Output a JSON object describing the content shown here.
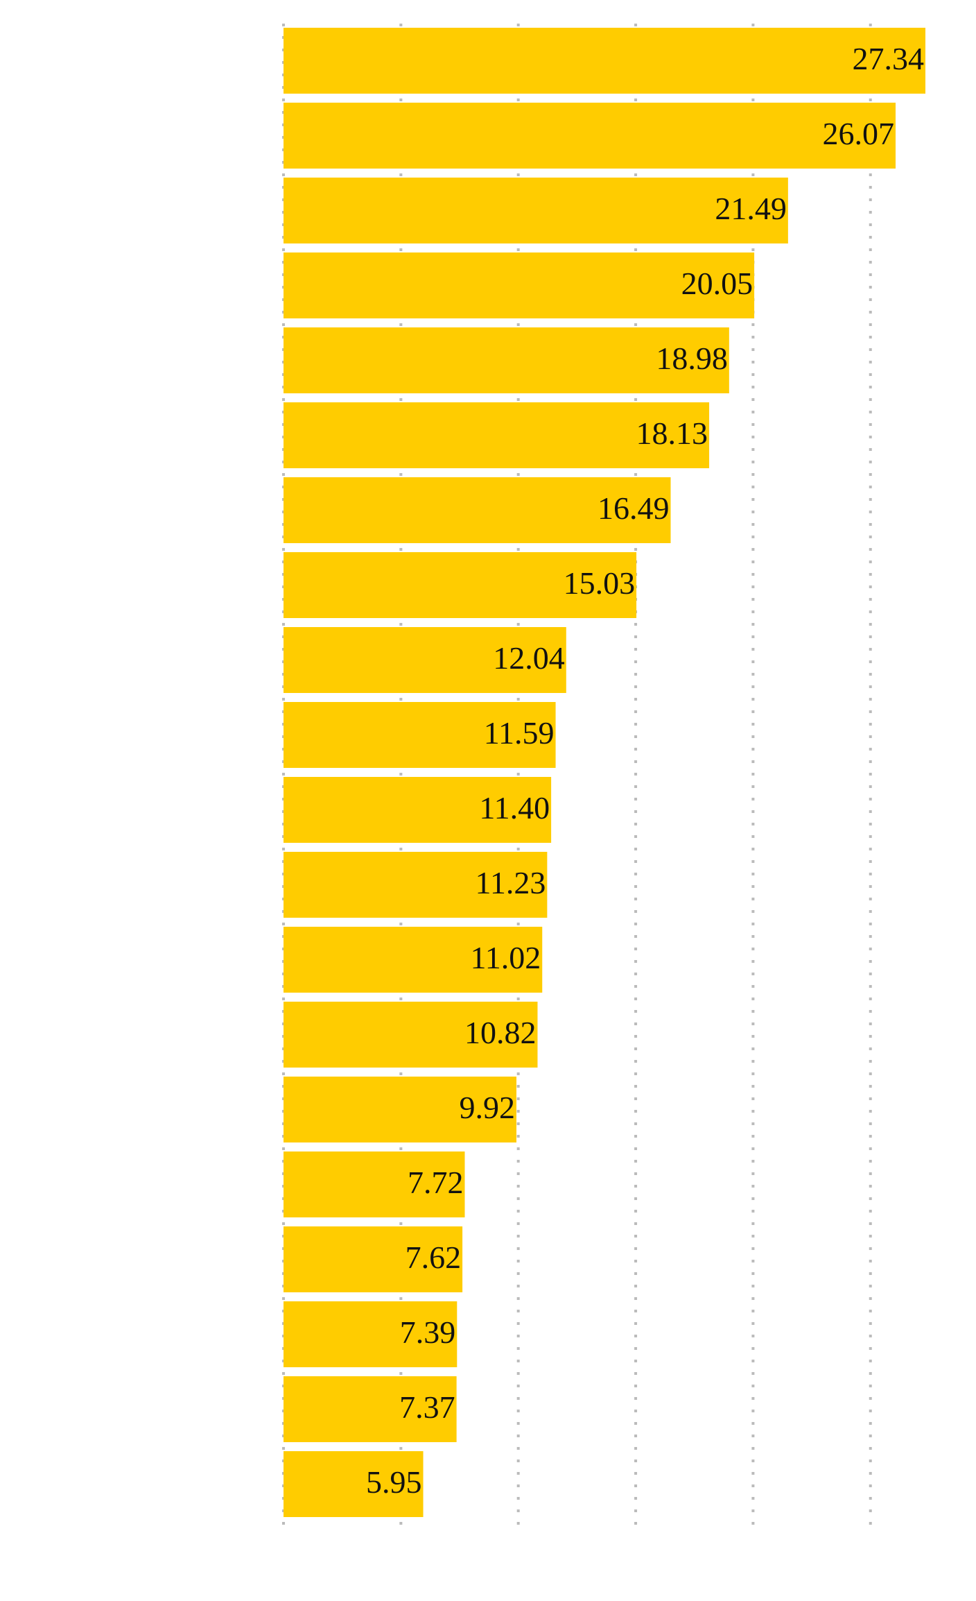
{
  "chart_data": {
    "type": "barh",
    "values": [
      27.34,
      26.07,
      21.49,
      20.05,
      18.98,
      18.13,
      16.49,
      15.03,
      12.04,
      11.59,
      11.4,
      11.23,
      11.02,
      10.82,
      9.92,
      7.72,
      7.62,
      7.39,
      7.37,
      5.95
    ],
    "value_labels": [
      "27.34",
      "26.07",
      "21.49",
      "20.05",
      "18.98",
      "18.13",
      "16.49",
      "15.03",
      "12.04",
      "11.59",
      "11.40",
      "11.23",
      "11.02",
      "10.82",
      "9.92",
      "7.72",
      "7.62",
      "7.39",
      "7.37",
      "5.95"
    ],
    "color": "#ffcc00",
    "xlim": [
      0,
      27.34
    ],
    "xticks": [
      0,
      5,
      10,
      15,
      20,
      25
    ],
    "grid": true
  }
}
